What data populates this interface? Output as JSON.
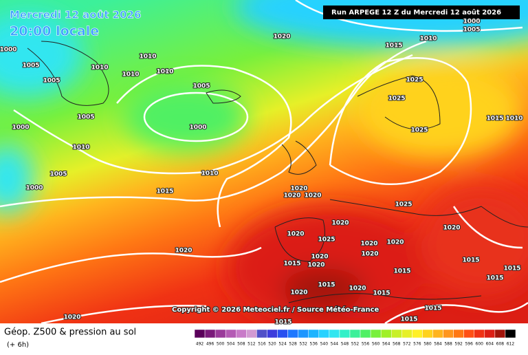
{
  "header": {
    "date": "Mercredi 12 août 2026",
    "time": "20:00 locale",
    "run": "Run ARPEGE 12 Z du Mercredi 12 août 2026"
  },
  "copyright": "Copyright © 2026 Meteociel.fr / Source Météo-France",
  "footer": {
    "title": "Géop. Z500 & pression au sol",
    "lead": "(+ 6h)"
  },
  "scale": {
    "values": [
      492,
      496,
      500,
      504,
      508,
      512,
      516,
      520,
      524,
      528,
      532,
      536,
      540,
      544,
      548,
      552,
      556,
      560,
      564,
      568,
      572,
      576,
      580,
      584,
      588,
      592,
      596,
      600,
      604,
      608,
      612
    ],
    "colors": [
      "#5a005a",
      "#7a1a7a",
      "#9a3a9a",
      "#b45ab4",
      "#c87ac8",
      "#d29ad2",
      "#5050c8",
      "#3c3cdc",
      "#2850f0",
      "#1e78ff",
      "#1e96ff",
      "#1eb4ff",
      "#28d2ff",
      "#32e6f0",
      "#32f0c8",
      "#3cf09a",
      "#50f064",
      "#78f03c",
      "#a0f028",
      "#c8f028",
      "#e6f028",
      "#fff028",
      "#ffd21e",
      "#ffb41e",
      "#ff961e",
      "#ff7814",
      "#ff5014",
      "#f03214",
      "#dc1e14",
      "#a0140a",
      "#000000"
    ]
  },
  "isobar_labels": [
    1000,
    1005,
    1005,
    1010,
    1010,
    1010,
    1010,
    1020,
    1015,
    1010,
    1000,
    1005,
    1005,
    1000,
    1005,
    1010,
    1000,
    1005,
    1000,
    1010,
    1015,
    1025,
    1025,
    1025,
    1015,
    1010,
    1020,
    1020,
    1020,
    1025,
    1020,
    1020,
    1020,
    1025,
    1020,
    1020,
    1020,
    1020,
    1020,
    1015,
    1015,
    1015,
    1020,
    1020,
    1015,
    1020,
    1015,
    1015,
    1015,
    1015,
    1015,
    1020,
    1015
  ]
}
